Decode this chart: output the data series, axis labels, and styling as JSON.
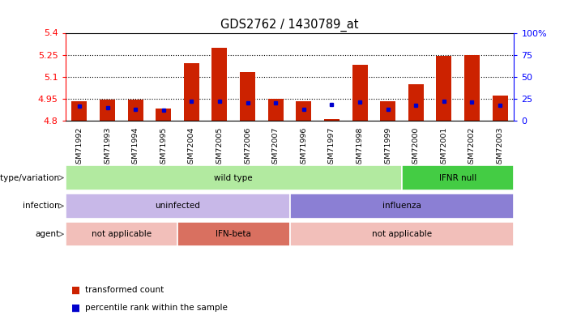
{
  "title": "GDS2762 / 1430789_at",
  "samples": [
    "GSM71992",
    "GSM71993",
    "GSM71994",
    "GSM71995",
    "GSM72004",
    "GSM72005",
    "GSM72006",
    "GSM72007",
    "GSM71996",
    "GSM71997",
    "GSM71998",
    "GSM71999",
    "GSM72000",
    "GSM72001",
    "GSM72002",
    "GSM72003"
  ],
  "red_values": [
    4.93,
    4.94,
    4.94,
    4.88,
    5.19,
    5.3,
    5.13,
    4.95,
    4.93,
    4.81,
    5.18,
    4.93,
    5.05,
    5.24,
    5.25,
    4.97
  ],
  "blue_values": [
    16,
    14,
    13,
    12,
    22,
    22,
    20,
    20,
    13,
    18,
    21,
    13,
    17,
    22,
    21,
    17
  ],
  "ymin": 4.8,
  "ymax": 5.4,
  "yticks": [
    4.8,
    4.95,
    5.1,
    5.25,
    5.4
  ],
  "ytick_labels": [
    "4.8",
    "4.95",
    "5.1",
    "5.25",
    "5.4"
  ],
  "right_yticks": [
    0,
    25,
    50,
    75,
    100
  ],
  "right_ytick_labels": [
    "0",
    "25",
    "50",
    "75",
    "100%"
  ],
  "bar_base": 4.8,
  "genotype_groups": [
    {
      "label": "wild type",
      "start": 0,
      "end": 12,
      "color": "#b2eaa0"
    },
    {
      "label": "IFNR null",
      "start": 12,
      "end": 16,
      "color": "#44cc44"
    }
  ],
  "infection_groups": [
    {
      "label": "uninfected",
      "start": 0,
      "end": 8,
      "color": "#c8b8e8"
    },
    {
      "label": "influenza",
      "start": 8,
      "end": 16,
      "color": "#8b7fd4"
    }
  ],
  "agent_groups": [
    {
      "label": "not applicable",
      "start": 0,
      "end": 4,
      "color": "#f2bfba"
    },
    {
      "label": "IFN-beta",
      "start": 4,
      "end": 8,
      "color": "#d97060"
    },
    {
      "label": "not applicable",
      "start": 8,
      "end": 16,
      "color": "#f2bfba"
    }
  ],
  "red_color": "#cc2200",
  "blue_color": "#0000cc",
  "bar_width": 0.55,
  "background_color": "#ffffff"
}
